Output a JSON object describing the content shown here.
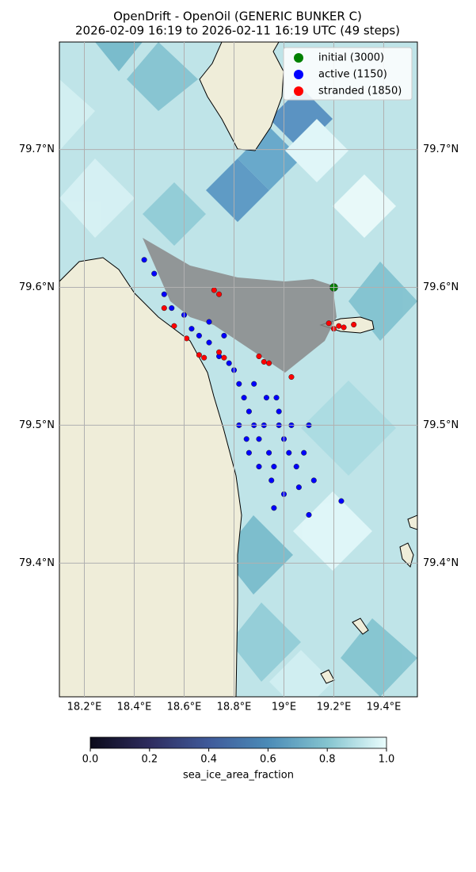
{
  "chart_data": {
    "type": "scatter",
    "title": "OpenDrift - OpenOil (GENERIC BUNKER C)",
    "subtitle": "2026-02-09 16:19 to 2026-02-11 16:19 UTC (49 steps)",
    "xlim": [
      18.1,
      19.535
    ],
    "ylim": [
      79.303,
      79.778
    ],
    "xticks": [
      {
        "value": 18.2,
        "label": "18.2°E"
      },
      {
        "value": 18.4,
        "label": "18.4°E"
      },
      {
        "value": 18.6,
        "label": "18.6°E"
      },
      {
        "value": 18.8,
        "label": "18.8°E"
      },
      {
        "value": 19.0,
        "label": "19°E"
      },
      {
        "value": 19.2,
        "label": "19.2°E"
      },
      {
        "value": 19.4,
        "label": "19.4°E"
      }
    ],
    "yticks": [
      {
        "value": 79.4,
        "label": "79.4°N"
      },
      {
        "value": 79.5,
        "label": "79.5°N"
      },
      {
        "value": 79.6,
        "label": "79.6°N"
      },
      {
        "value": 79.7,
        "label": "79.7°N"
      }
    ],
    "grid": true,
    "legend": "upper right",
    "series": [
      {
        "name": "initial (3000)",
        "color": "#008000",
        "x": [
          19.2
        ],
        "values": [
          79.6
        ]
      },
      {
        "name": "active (1150)",
        "color": "#0000ff",
        "x": [
          18.44,
          18.48,
          18.52,
          18.55,
          18.6,
          18.63,
          18.66,
          18.7,
          18.74,
          18.78,
          18.8,
          18.82,
          18.84,
          18.86,
          18.88,
          18.9,
          18.92,
          18.94,
          18.96,
          18.98,
          19.0,
          19.02,
          19.05,
          19.08,
          19.1,
          18.82,
          18.86,
          18.9,
          18.95,
          19.0,
          18.88,
          18.93,
          18.98,
          19.03,
          18.85,
          18.96,
          19.06,
          19.12,
          19.23,
          19.1,
          18.97,
          18.7,
          18.76
        ],
        "values": [
          79.62,
          79.61,
          79.595,
          79.585,
          79.58,
          79.57,
          79.565,
          79.56,
          79.55,
          79.545,
          79.54,
          79.53,
          79.52,
          79.51,
          79.5,
          79.49,
          79.5,
          79.48,
          79.47,
          79.5,
          79.49,
          79.48,
          79.47,
          79.48,
          79.5,
          79.5,
          79.48,
          79.47,
          79.46,
          79.45,
          79.53,
          79.52,
          79.51,
          79.5,
          79.49,
          79.44,
          79.455,
          79.46,
          79.445,
          79.435,
          79.52,
          79.575,
          79.565
        ]
      },
      {
        "name": "stranded (1850)",
        "color": "#ff0000",
        "x": [
          18.72,
          18.74,
          19.18,
          19.2,
          19.22,
          19.24,
          19.28,
          18.9,
          18.92,
          18.94,
          18.74,
          18.68,
          18.76,
          19.03,
          18.52,
          18.56,
          18.61,
          18.66
        ],
        "values": [
          79.598,
          79.595,
          79.574,
          79.57,
          79.572,
          79.571,
          79.573,
          79.55,
          79.546,
          79.545,
          79.553,
          79.549,
          79.549,
          79.535,
          79.585,
          79.572,
          79.563,
          79.551
        ]
      }
    ],
    "colorbar": {
      "label": "sea_ice_area_fraction",
      "lim": [
        0,
        1
      ],
      "ticks": [
        {
          "value": 0,
          "label": "0.0"
        },
        {
          "value": 0.2,
          "label": "0.2"
        },
        {
          "value": 0.4,
          "label": "0.4"
        },
        {
          "value": 0.6,
          "label": "0.6"
        },
        {
          "value": 0.8,
          "label": "0.8"
        },
        {
          "value": 1,
          "label": "1.0"
        }
      ]
    }
  }
}
